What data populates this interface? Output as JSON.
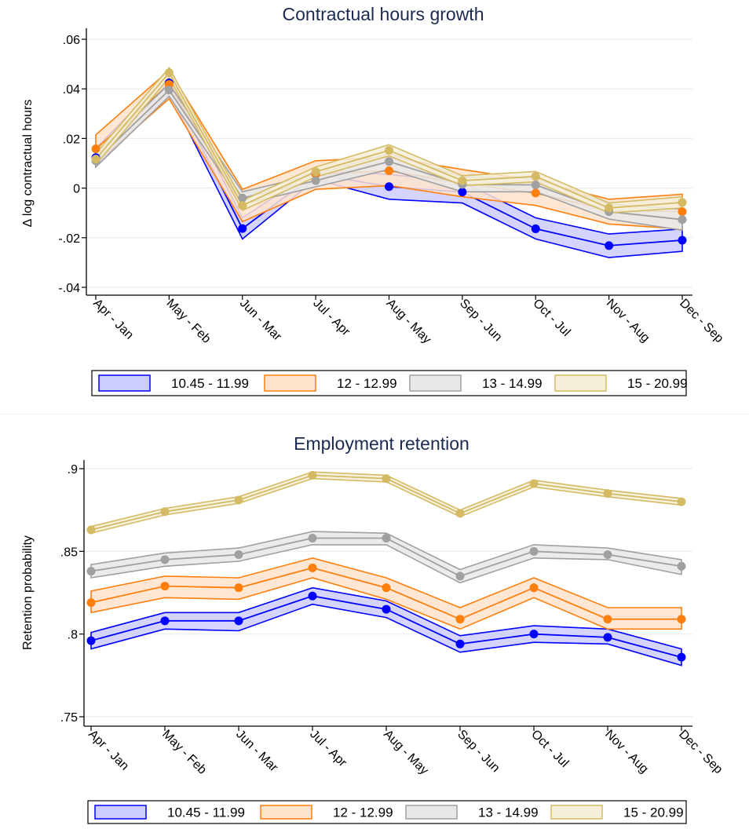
{
  "chart_data": [
    {
      "type": "line",
      "id": "hours",
      "title": "Contractual hours growth",
      "xlabel": "",
      "ylabel": "Δ log contractual hours",
      "categories": [
        "Apr - Jan",
        "May - Feb",
        "Jun - Mar",
        "Jul - Apr",
        "Aug - May",
        "Sep - Jun",
        "Oct - Jul",
        "Nov - Aug",
        "Dec - Sep"
      ],
      "ylim": [
        -0.043,
        0.063
      ],
      "yticks": [
        0.06,
        0.04,
        0.02,
        0,
        -0.02,
        -0.04
      ],
      "ytick_labels": [
        ".06",
        ".04",
        ".02",
        "0",
        "-.02",
        "-.04"
      ],
      "grid": true,
      "legend_position": "bottom",
      "series": [
        {
          "name": "10.45 - 11.99",
          "color": "#0000ff",
          "fill": "#ccccff",
          "values": [
            0.0123,
            0.0424,
            -0.0163,
            0.0057,
            0.0006,
            -0.0016,
            -0.0164,
            -0.0232,
            -0.021
          ],
          "ci_low": [
            0.0085,
            0.0385,
            -0.0205,
            0.0035,
            -0.0045,
            -0.006,
            -0.0205,
            -0.028,
            -0.0255
          ],
          "ci_high": [
            0.016,
            0.046,
            -0.012,
            0.0075,
            0.0055,
            0.0025,
            -0.012,
            -0.0185,
            -0.0165
          ]
        },
        {
          "name": "12 - 12.99",
          "color": "#ff7f0e",
          "fill": "#ffe3cc",
          "values": [
            0.0158,
            0.0418,
            -0.007,
            0.0057,
            0.007,
            0.002,
            -0.002,
            -0.009,
            -0.0095
          ],
          "ci_low": [
            0.01,
            0.036,
            -0.0135,
            -0.0005,
            0.001,
            -0.0035,
            -0.007,
            -0.0145,
            -0.0165
          ],
          "ci_high": [
            0.0215,
            0.0475,
            -0.0005,
            0.011,
            0.0125,
            0.0075,
            0.003,
            -0.0045,
            -0.0025
          ]
        },
        {
          "name": "13 - 14.99",
          "color": "#a0a0a0",
          "fill": "#e8e8e8",
          "values": [
            0.011,
            0.0395,
            -0.004,
            0.003,
            0.0107,
            0.0015,
            0.0013,
            -0.0095,
            -0.0127
          ],
          "ci_low": [
            0.0085,
            0.037,
            -0.0065,
            0.0005,
            0.0075,
            -0.0015,
            -0.0015,
            -0.0125,
            -0.017
          ],
          "ci_high": [
            0.0135,
            0.042,
            -0.0015,
            0.0055,
            0.014,
            0.0045,
            0.004,
            -0.0065,
            -0.0085
          ]
        },
        {
          "name": "15 - 20.99",
          "color": "#d4bb63",
          "fill": "#f6efd9",
          "values": [
            0.0117,
            0.0465,
            -0.007,
            0.0066,
            0.0152,
            0.003,
            0.0047,
            -0.008,
            -0.0058
          ],
          "ci_low": [
            0.0095,
            0.0445,
            -0.009,
            0.0045,
            0.013,
            0.001,
            0.0025,
            -0.01,
            -0.008
          ],
          "ci_high": [
            0.014,
            0.0485,
            -0.005,
            0.0085,
            0.0175,
            0.005,
            0.0067,
            -0.006,
            -0.0035
          ]
        }
      ]
    },
    {
      "type": "line",
      "id": "retention",
      "title": "Employment retention",
      "xlabel": "",
      "ylabel": "Retention probability",
      "categories": [
        "Apr - Jan",
        "May - Feb",
        "Jun - Mar",
        "Jul - Apr",
        "Aug - May",
        "Sep - Jun",
        "Oct - Jul",
        "Nov - Aug",
        "Dec - Sep"
      ],
      "ylim": [
        0.746,
        0.902
      ],
      "yticks": [
        0.9,
        0.85,
        0.8,
        0.75
      ],
      "ytick_labels": [
        ".9",
        ".85",
        ".8",
        ".75"
      ],
      "grid": true,
      "legend_position": "bottom",
      "series": [
        {
          "name": "10.45 - 11.99",
          "color": "#0000ff",
          "fill": "#ccccff",
          "values": [
            0.796,
            0.808,
            0.808,
            0.823,
            0.815,
            0.794,
            0.8,
            0.798,
            0.786
          ],
          "ci_low": [
            0.791,
            0.803,
            0.802,
            0.818,
            0.81,
            0.789,
            0.795,
            0.794,
            0.781
          ],
          "ci_high": [
            0.801,
            0.813,
            0.813,
            0.828,
            0.82,
            0.799,
            0.805,
            0.803,
            0.791
          ]
        },
        {
          "name": "12 - 12.99",
          "color": "#ff7f0e",
          "fill": "#ffe3cc",
          "values": [
            0.819,
            0.829,
            0.828,
            0.84,
            0.828,
            0.809,
            0.828,
            0.809,
            0.809
          ],
          "ci_low": [
            0.813,
            0.822,
            0.821,
            0.834,
            0.821,
            0.803,
            0.822,
            0.803,
            0.803
          ],
          "ci_high": [
            0.826,
            0.835,
            0.834,
            0.846,
            0.834,
            0.816,
            0.834,
            0.816,
            0.816
          ]
        },
        {
          "name": "13 - 14.99",
          "color": "#a0a0a0",
          "fill": "#e8e8e8",
          "values": [
            0.838,
            0.845,
            0.848,
            0.858,
            0.858,
            0.835,
            0.85,
            0.848,
            0.841
          ],
          "ci_low": [
            0.834,
            0.841,
            0.844,
            0.854,
            0.854,
            0.831,
            0.846,
            0.845,
            0.836
          ],
          "ci_high": [
            0.842,
            0.849,
            0.852,
            0.862,
            0.861,
            0.839,
            0.854,
            0.852,
            0.845
          ]
        },
        {
          "name": "15 - 20.99",
          "color": "#d4bb63",
          "fill": "#f6efd9",
          "values": [
            0.863,
            0.874,
            0.881,
            0.896,
            0.894,
            0.873,
            0.891,
            0.885,
            0.88
          ],
          "ci_low": [
            0.861,
            0.872,
            0.879,
            0.894,
            0.892,
            0.871,
            0.889,
            0.883,
            0.878
          ],
          "ci_high": [
            0.865,
            0.876,
            0.883,
            0.898,
            0.896,
            0.875,
            0.893,
            0.887,
            0.882
          ]
        }
      ]
    }
  ]
}
